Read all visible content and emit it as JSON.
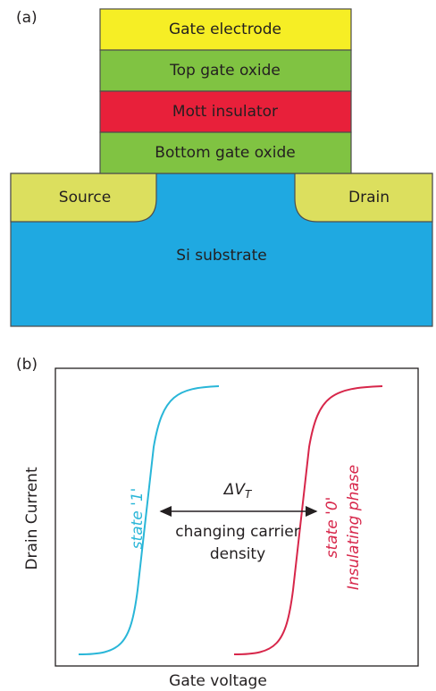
{
  "panel_a": {
    "label": "(a)",
    "layers": [
      "Gate electrode",
      "Top gate oxide",
      "Mott insulator",
      "Bottom gate oxide"
    ],
    "source": "Source",
    "drain": "Drain",
    "substrate": "Si substrate"
  },
  "panel_b": {
    "label": "(b)",
    "y_axis_label": "Drain Current",
    "x_axis_label": "Gate voltage",
    "delta_symbol": "ΔV",
    "delta_subscript": "T",
    "arrow_label": [
      "changing carrier",
      "density"
    ],
    "curve_1_label": "state '1'",
    "curve_0_labels": [
      "state '0'",
      "Insulating phase"
    ]
  }
}
